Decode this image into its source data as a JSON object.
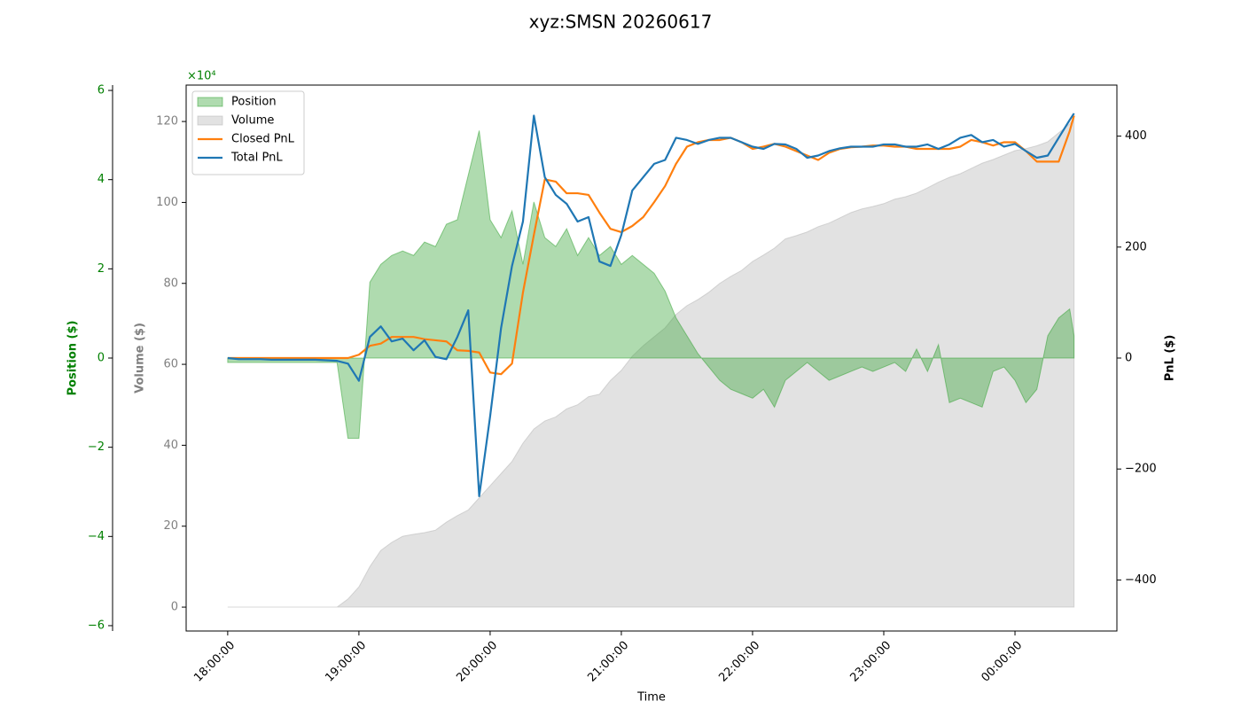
{
  "chart_data": {
    "type": "line",
    "title": "xyz:SMSN 20260617",
    "x_label": "Time",
    "y_label": "Position ($)",
    "y3_label": "Volume ($)",
    "y2_label": "PnL ($)",
    "y_offset_label": "×10⁴",
    "legend": "upper left",
    "x": [
      "18:00:00",
      "18:05:00",
      "18:10:00",
      "18:15:00",
      "18:20:00",
      "18:25:00",
      "18:30:00",
      "18:35:00",
      "18:40:00",
      "18:45:00",
      "18:50:00",
      "18:55:00",
      "19:00:00",
      "19:05:00",
      "19:10:00",
      "19:15:00",
      "19:20:00",
      "19:25:00",
      "19:30:00",
      "19:35:00",
      "19:40:00",
      "19:45:00",
      "19:50:00",
      "19:55:00",
      "20:00:00",
      "20:05:00",
      "20:10:00",
      "20:15:00",
      "20:20:00",
      "20:25:00",
      "20:30:00",
      "20:35:00",
      "20:40:00",
      "20:45:00",
      "20:50:00",
      "20:55:00",
      "21:00:00",
      "21:05:00",
      "21:10:00",
      "21:15:00",
      "21:20:00",
      "21:25:00",
      "21:30:00",
      "21:35:00",
      "21:40:00",
      "21:45:00",
      "21:50:00",
      "21:55:00",
      "22:00:00",
      "22:05:00",
      "22:10:00",
      "22:15:00",
      "22:20:00",
      "22:25:00",
      "22:30:00",
      "22:35:00",
      "22:40:00",
      "22:45:00",
      "22:50:00",
      "22:55:00",
      "23:00:00",
      "23:05:00",
      "23:10:00",
      "23:15:00",
      "23:20:00",
      "23:25:00",
      "23:30:00",
      "23:35:00",
      "23:40:00",
      "23:45:00",
      "23:50:00",
      "23:55:00",
      "00:00:00",
      "00:05:00",
      "00:10:00",
      "00:15:00",
      "00:20:00",
      "00:25:00",
      "00:27:00"
    ],
    "xlim": [
      "17:41:00",
      "00:46:36"
    ],
    "xticks": [
      "18:00:00",
      "19:00:00",
      "20:00:00",
      "21:00:00",
      "22:00:00",
      "23:00:00",
      "00:00:00"
    ],
    "ylim": [
      -6.12,
      6.12
    ],
    "yticks": [
      {
        "value": -6,
        "label": "−6"
      },
      {
        "value": -4,
        "label": "−4"
      },
      {
        "value": -2,
        "label": "−2"
      },
      0,
      2,
      4,
      6
    ],
    "y3lim": [
      -5.9,
      129
    ],
    "y3ticks": [
      0,
      20,
      40,
      60,
      80,
      100,
      120
    ],
    "y2lim": [
      -492,
      492
    ],
    "y2ticks": [
      {
        "value": -400,
        "label": "−400"
      },
      {
        "value": -200,
        "label": "−200"
      },
      0,
      200,
      400
    ],
    "series": [
      {
        "name": "Volume",
        "type": "area",
        "axis": "y3",
        "color": "#b4b4b4",
        "values": [
          0,
          0,
          0,
          0,
          0,
          0,
          0,
          0,
          0,
          0,
          0,
          2,
          5,
          10,
          14,
          16,
          17.5,
          18,
          18.4,
          19,
          21,
          22.6,
          24,
          27,
          30,
          33,
          36,
          40.5,
          44,
          46,
          47,
          49,
          50,
          52,
          52.6,
          56,
          58.5,
          62,
          64.6,
          66.8,
          69,
          72.3,
          74.5,
          76,
          77.8,
          80,
          81.7,
          83.2,
          85.4,
          87,
          88.7,
          91,
          91.8,
          92.7,
          94,
          94.9,
          96.2,
          97.5,
          98.4,
          99,
          99.7,
          100.8,
          101.4,
          102.3,
          103.6,
          105,
          106.2,
          107.1,
          108.4,
          109.7,
          110.6,
          111.7,
          112.8,
          113.3,
          114,
          115,
          117.2,
          119.4,
          121
        ]
      },
      {
        "name": "Position",
        "type": "area",
        "axis": "y",
        "color": "#2ca02c",
        "values": [
          -0.1,
          -0.1,
          -0.1,
          -0.1,
          -0.1,
          -0.1,
          -0.1,
          -0.1,
          -0.1,
          -0.1,
          -0.1,
          -1.8,
          -1.8,
          1.7,
          2.1,
          2.3,
          2.4,
          2.3,
          2.6,
          2.5,
          3.0,
          3.1,
          4.1,
          5.1,
          3.1,
          2.7,
          3.3,
          2.1,
          3.5,
          2.7,
          2.5,
          2.9,
          2.3,
          2.7,
          2.3,
          2.5,
          2.1,
          2.3,
          2.1,
          1.9,
          1.5,
          0.9,
          0.5,
          0.1,
          -0.2,
          -0.5,
          -0.7,
          -0.8,
          -0.9,
          -0.7,
          -1.1,
          -0.5,
          -0.3,
          -0.1,
          -0.3,
          -0.5,
          -0.4,
          -0.3,
          -0.2,
          -0.3,
          -0.2,
          -0.1,
          -0.3,
          0.2,
          -0.3,
          0.3,
          -1.0,
          -0.9,
          -1.0,
          -1.1,
          -0.3,
          -0.2,
          -0.5,
          -1.0,
          -0.7,
          0.5,
          0.9,
          1.1,
          0.5
        ]
      },
      {
        "name": "Closed PnL",
        "type": "line",
        "axis": "y2",
        "color": "#ff7f0e",
        "values": [
          0,
          0,
          0,
          0,
          0,
          0,
          0,
          0,
          0,
          0,
          0,
          0,
          6,
          22,
          26,
          38,
          38,
          38,
          34,
          32,
          30,
          14,
          13,
          10,
          -26,
          -29,
          -10,
          118,
          222,
          322,
          318,
          297,
          297,
          294,
          262,
          233,
          227,
          238,
          254,
          281,
          310,
          350,
          381,
          389,
          393,
          393,
          397,
          389,
          377,
          381,
          386,
          381,
          373,
          365,
          357,
          370,
          377,
          380,
          381,
          383,
          383,
          381,
          381,
          377,
          377,
          377,
          377,
          381,
          393,
          389,
          383,
          389,
          389,
          373,
          354,
          354,
          354,
          409,
          437
        ]
      },
      {
        "name": "Total PnL",
        "type": "line",
        "axis": "y2",
        "color": "#1f77b4",
        "values": [
          0,
          -2,
          -2,
          -2,
          -3,
          -3,
          -3,
          -3,
          -3,
          -4,
          -5,
          -10,
          -41,
          38,
          57,
          30,
          35,
          14,
          32,
          2,
          -2,
          38,
          86,
          -249,
          -105,
          54,
          166,
          246,
          437,
          326,
          294,
          278,
          246,
          254,
          174,
          166,
          222,
          302,
          326,
          350,
          357,
          397,
          393,
          386,
          393,
          397,
          397,
          389,
          381,
          377,
          386,
          385,
          377,
          361,
          365,
          373,
          378,
          381,
          381,
          381,
          385,
          385,
          381,
          381,
          385,
          377,
          385,
          397,
          402,
          389,
          393,
          381,
          386,
          373,
          361,
          365,
          397,
          429,
          441
        ]
      }
    ]
  }
}
